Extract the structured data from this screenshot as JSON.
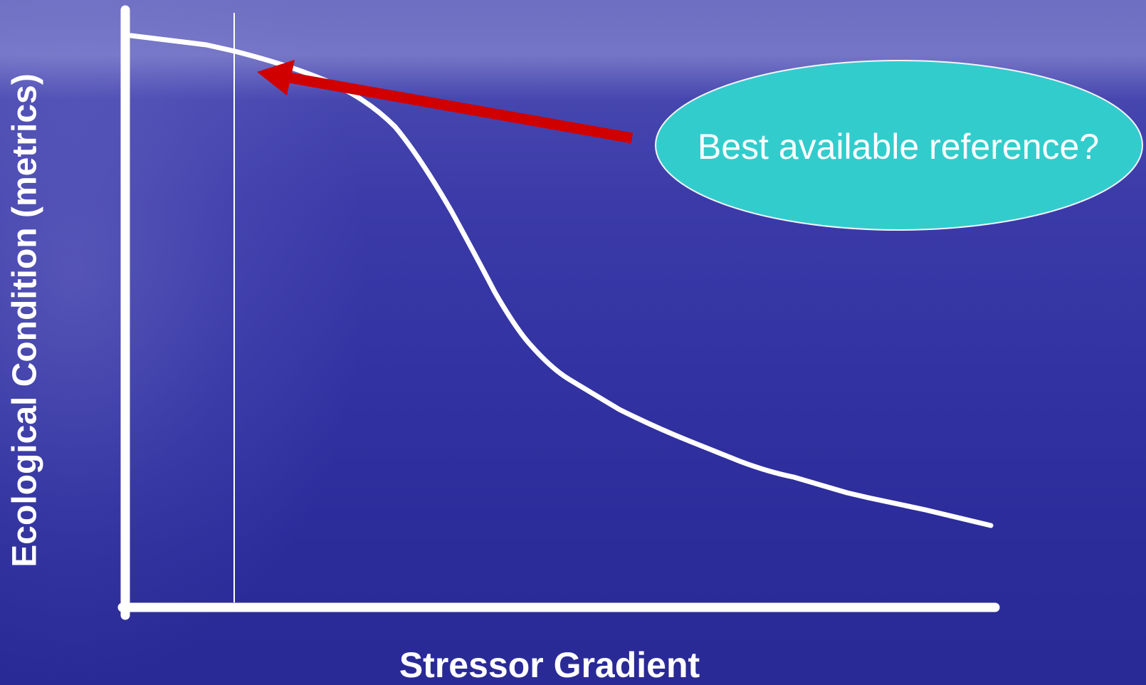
{
  "slide": {
    "y_axis_label": "Ecological Condition (metrics)",
    "x_axis_label": "Stressor Gradient",
    "callout_text": "Best available reference?"
  },
  "colors": {
    "background_top": "#5a5ab8",
    "background_bottom": "#2a2a96",
    "axis": "#ffffff",
    "curve": "#ffffff",
    "arrow": "#d00000",
    "callout_fill": "#33cccc",
    "callout_text": "#ffffff"
  },
  "icons": {
    "pointer": "red-arrow-icon"
  }
}
